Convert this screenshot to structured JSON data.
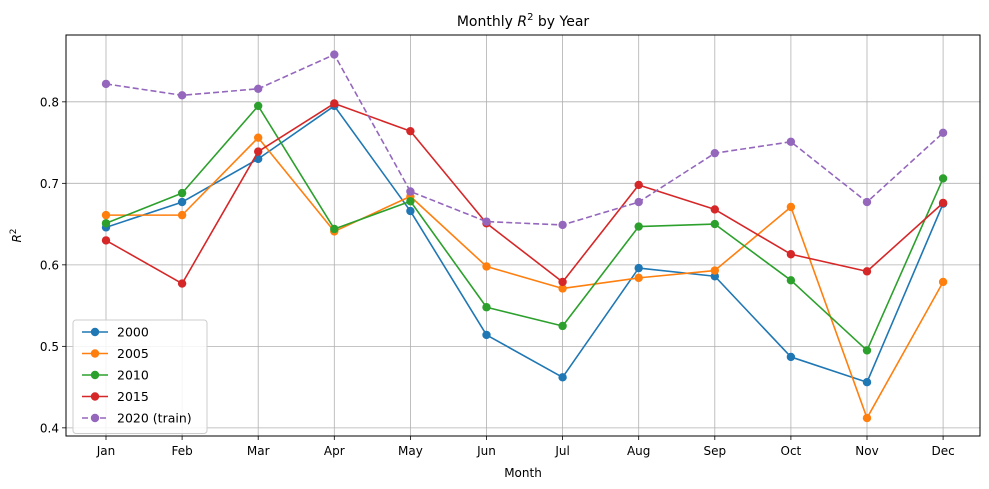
{
  "chart_data": {
    "type": "line",
    "title": "Monthly R² by Year",
    "xlabel": "Month",
    "ylabel": "R²",
    "categories": [
      "Jan",
      "Feb",
      "Mar",
      "Apr",
      "May",
      "Jun",
      "Jul",
      "Aug",
      "Sep",
      "Oct",
      "Nov",
      "Dec"
    ],
    "ylim": [
      0.39,
      0.882
    ],
    "yticks": [
      0.4,
      0.5,
      0.6,
      0.7,
      0.8
    ],
    "ytick_labels": [
      "0.4",
      "0.5",
      "0.6",
      "0.7",
      "0.8"
    ],
    "grid": true,
    "legend_position": "lower-left",
    "series": [
      {
        "name": "2000",
        "color": "#1f77b4",
        "dashed": false,
        "values": [
          0.646,
          0.677,
          0.73,
          0.795,
          0.666,
          0.514,
          0.462,
          0.596,
          0.586,
          0.487,
          0.456,
          0.675
        ]
      },
      {
        "name": "2005",
        "color": "#ff7f0e",
        "dashed": false,
        "values": [
          0.661,
          0.661,
          0.756,
          0.641,
          0.684,
          0.598,
          0.571,
          0.584,
          0.593,
          0.671,
          0.412,
          0.579
        ]
      },
      {
        "name": "2010",
        "color": "#2ca02c",
        "dashed": false,
        "values": [
          0.651,
          0.688,
          0.795,
          0.644,
          0.678,
          0.548,
          0.525,
          0.647,
          0.65,
          0.581,
          0.495,
          0.706
        ]
      },
      {
        "name": "2015",
        "color": "#d62728",
        "dashed": false,
        "values": [
          0.63,
          0.577,
          0.739,
          0.798,
          0.764,
          0.651,
          0.579,
          0.698,
          0.668,
          0.613,
          0.592,
          0.676
        ]
      },
      {
        "name": "2020 (train)",
        "color": "#9467bd",
        "dashed": true,
        "values": [
          0.822,
          0.808,
          0.816,
          0.858,
          0.69,
          0.653,
          0.649,
          0.677,
          0.737,
          0.751,
          0.677,
          0.762
        ]
      }
    ]
  }
}
